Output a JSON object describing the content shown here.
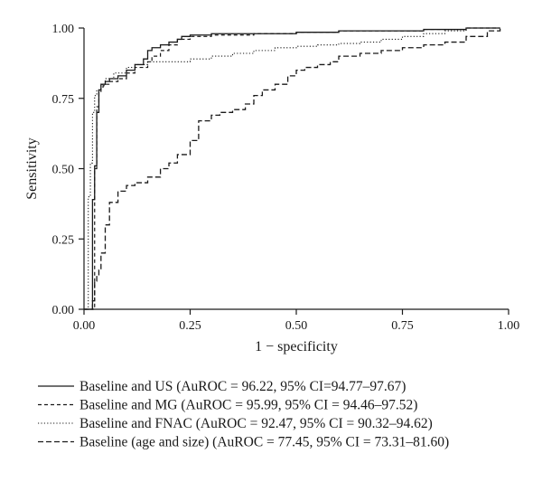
{
  "chart_data": {
    "type": "line",
    "title": "",
    "xlabel": "1 − specificity",
    "ylabel": "Sensitivity",
    "xlim": [
      0,
      1
    ],
    "ylim": [
      0,
      1
    ],
    "xticks": [
      "0.00",
      "0.25",
      "0.50",
      "0.75",
      "1.00"
    ],
    "yticks": [
      "0.00",
      "0.25",
      "0.50",
      "0.75",
      "1.00"
    ],
    "grid": false,
    "legend_position": "bottom",
    "series": [
      {
        "name": "Baseline and US (AuROC = 96.22, 95% CI=94.77–97.67)",
        "style": "solid",
        "x": [
          0.0,
          0.02,
          0.02,
          0.025,
          0.025,
          0.03,
          0.03,
          0.035,
          0.04,
          0.05,
          0.06,
          0.08,
          0.1,
          0.12,
          0.14,
          0.15,
          0.16,
          0.18,
          0.2,
          0.22,
          0.23,
          0.25,
          0.3,
          0.4,
          0.5,
          0.6,
          0.7,
          0.8,
          0.9,
          0.98
        ],
        "y": [
          0.0,
          0.1,
          0.39,
          0.45,
          0.51,
          0.55,
          0.7,
          0.78,
          0.8,
          0.81,
          0.82,
          0.83,
          0.85,
          0.87,
          0.89,
          0.92,
          0.93,
          0.94,
          0.95,
          0.96,
          0.97,
          0.975,
          0.98,
          0.98,
          0.985,
          0.99,
          0.99,
          0.995,
          1.0,
          1.0
        ]
      },
      {
        "name": "Baseline and MG (AuROC = 95.99, 95% CI = 94.46–97.52)",
        "style": "dashed",
        "x": [
          0.0,
          0.025,
          0.03,
          0.03,
          0.035,
          0.04,
          0.045,
          0.05,
          0.06,
          0.08,
          0.1,
          0.12,
          0.15,
          0.16,
          0.18,
          0.2,
          0.22,
          0.25,
          0.3,
          0.4,
          0.5,
          0.6,
          0.7,
          0.8,
          0.9,
          0.98
        ],
        "y": [
          0.0,
          0.5,
          0.55,
          0.72,
          0.77,
          0.79,
          0.795,
          0.8,
          0.81,
          0.82,
          0.84,
          0.86,
          0.88,
          0.9,
          0.92,
          0.94,
          0.96,
          0.97,
          0.975,
          0.98,
          0.985,
          0.99,
          0.99,
          0.995,
          1.0,
          1.0
        ]
      },
      {
        "name": "Baseline and FNAC (AuROC = 92.47, 95% CI = 90.32–94.62)",
        "style": "dotted",
        "x": [
          0.0,
          0.01,
          0.015,
          0.02,
          0.025,
          0.03,
          0.04,
          0.05,
          0.07,
          0.1,
          0.12,
          0.15,
          0.2,
          0.25,
          0.3,
          0.35,
          0.4,
          0.45,
          0.5,
          0.55,
          0.6,
          0.65,
          0.7,
          0.75,
          0.8,
          0.85,
          0.9,
          0.98
        ],
        "y": [
          0.0,
          0.4,
          0.52,
          0.7,
          0.76,
          0.78,
          0.8,
          0.82,
          0.84,
          0.86,
          0.87,
          0.88,
          0.88,
          0.89,
          0.9,
          0.91,
          0.92,
          0.93,
          0.935,
          0.94,
          0.945,
          0.95,
          0.96,
          0.97,
          0.98,
          0.99,
          1.0,
          1.0
        ]
      },
      {
        "name": "Baseline (age and size) (AuROC = 77.45, 95% CI = 73.31–81.60)",
        "style": "long-dashed",
        "x": [
          0.0,
          0.02,
          0.025,
          0.03,
          0.035,
          0.04,
          0.05,
          0.06,
          0.08,
          0.1,
          0.12,
          0.15,
          0.18,
          0.2,
          0.22,
          0.25,
          0.27,
          0.3,
          0.32,
          0.35,
          0.38,
          0.4,
          0.42,
          0.45,
          0.48,
          0.5,
          0.52,
          0.55,
          0.58,
          0.6,
          0.65,
          0.7,
          0.75,
          0.8,
          0.85,
          0.9,
          0.95,
          0.98
        ],
        "y": [
          0.0,
          0.03,
          0.1,
          0.12,
          0.14,
          0.2,
          0.3,
          0.38,
          0.42,
          0.44,
          0.45,
          0.47,
          0.5,
          0.52,
          0.55,
          0.6,
          0.67,
          0.69,
          0.7,
          0.71,
          0.73,
          0.76,
          0.78,
          0.8,
          0.83,
          0.85,
          0.86,
          0.87,
          0.88,
          0.9,
          0.91,
          0.92,
          0.93,
          0.94,
          0.95,
          0.97,
          0.99,
          1.0
        ]
      }
    ]
  }
}
